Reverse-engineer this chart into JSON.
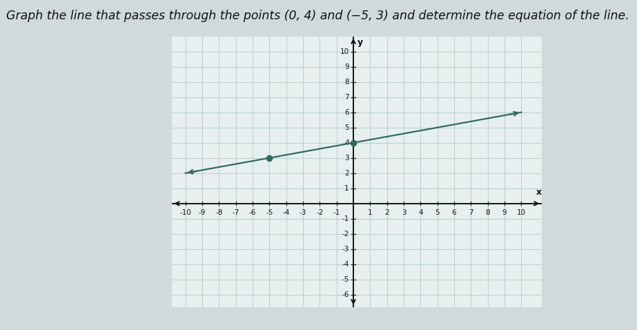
{
  "title": "Graph the line that passes through the points (0, 4) and (−5, 3) and determine the equation of the line.",
  "point1": [
    0,
    4
  ],
  "point2": [
    -5,
    3
  ],
  "slope_num": 1,
  "slope_den": 5,
  "y_intercept": 4,
  "xlim": [
    -10.8,
    11.2
  ],
  "ylim": [
    -6.8,
    11.0
  ],
  "xticks": [
    -10,
    -9,
    -8,
    -7,
    -6,
    -5,
    -4,
    -3,
    -2,
    -1,
    1,
    2,
    3,
    4,
    5,
    6,
    7,
    8,
    9,
    10
  ],
  "yticks": [
    -6,
    -5,
    -4,
    -3,
    -2,
    -1,
    1,
    2,
    3,
    4,
    5,
    6,
    7,
    8,
    9,
    10
  ],
  "line_color": "#2e6b5e",
  "dot_color": "#2e6b5e",
  "grid_color": "#afc9c9",
  "axis_color": "#111111",
  "bg_color": "#e8efef",
  "page_bg_color": "#d0dada",
  "fig_bg_color": "#d0dada",
  "line_width": 1.6,
  "dot_size": 35,
  "title_fontsize": 12.5,
  "tick_fontsize": 7.5
}
